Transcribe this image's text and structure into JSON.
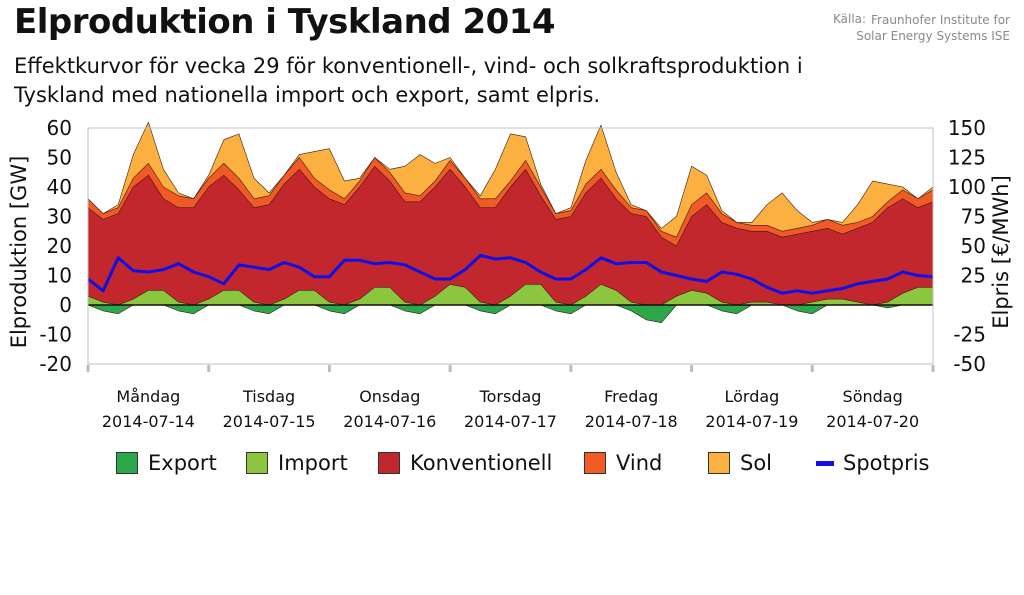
{
  "header": {
    "title": "Elproduktion i Tyskland 2014",
    "subtitle": "Effektkurvor för vecka 29 för konventionell-, vind- och solkraftsproduktion i Tyskland med nationella import och export, samt elpris.",
    "source_label": "Källa:",
    "source_name_line1": "Fraunhofer Institute for",
    "source_name_line2": "Solar Energy Systems ISE"
  },
  "colors": {
    "export": "#2aa84a",
    "import": "#8cc63f",
    "konventionell": "#c1272d",
    "vind": "#f15a24",
    "sol": "#fbb040",
    "spotpris": "#1010e6"
  },
  "chart_data": {
    "type": "area",
    "ylabel": "Elproduktion [GW]",
    "y2label": "Elpris [€/MWh]",
    "ylim": [
      -20,
      60
    ],
    "y2lim": [
      -50,
      150
    ],
    "yticks": [
      -20,
      -10,
      0,
      10,
      20,
      30,
      40,
      50,
      60
    ],
    "y2ticks": [
      -50,
      -25,
      25,
      50,
      75,
      100,
      125,
      150
    ],
    "grid": false,
    "legend_position": "bottom",
    "days": [
      {
        "name": "Måndag",
        "date": "2014-07-14"
      },
      {
        "name": "Tisdag",
        "date": "2014-07-15"
      },
      {
        "name": "Onsdag",
        "date": "2014-07-16"
      },
      {
        "name": "Torsdag",
        "date": "2014-07-17"
      },
      {
        "name": "Fredag",
        "date": "2014-07-18"
      },
      {
        "name": "Lördag",
        "date": "2014-07-19"
      },
      {
        "name": "Söndag",
        "date": "2014-07-20"
      }
    ],
    "x_hours": [
      0,
      3,
      6,
      9,
      12,
      15,
      18,
      21,
      24,
      27,
      30,
      33,
      36,
      39,
      42,
      45,
      48,
      51,
      54,
      57,
      60,
      63,
      66,
      69,
      72,
      75,
      78,
      81,
      84,
      87,
      90,
      93,
      96,
      99,
      102,
      105,
      108,
      111,
      114,
      117,
      120,
      123,
      126,
      129,
      132,
      135,
      138,
      141,
      144,
      147,
      150,
      153,
      156,
      159,
      162,
      165,
      168
    ],
    "series": [
      {
        "name": "Export",
        "unit": "GW",
        "values": [
          0,
          -2,
          -3,
          0,
          0,
          0,
          -2,
          -3,
          0,
          0,
          0,
          -2,
          -3,
          0,
          0,
          0,
          -2,
          -3,
          0,
          0,
          0,
          -2,
          -3,
          0,
          0,
          0,
          -2,
          -3,
          0,
          0,
          0,
          -2,
          -3,
          0,
          0,
          0,
          -2,
          -5,
          -6,
          0,
          0,
          0,
          -2,
          -3,
          0,
          0,
          0,
          -2,
          -3,
          0,
          0,
          0,
          0,
          -1,
          0,
          0,
          0
        ]
      },
      {
        "name": "Import",
        "unit": "GW",
        "values": [
          3,
          1,
          0,
          2,
          5,
          5,
          1,
          0,
          2,
          5,
          5,
          1,
          0,
          2,
          5,
          5,
          1,
          0,
          2,
          6,
          6,
          1,
          0,
          3,
          7,
          6,
          1,
          0,
          3,
          7,
          7,
          1,
          0,
          3,
          7,
          5,
          1,
          0,
          0,
          3,
          5,
          4,
          1,
          0,
          1,
          1,
          0,
          0,
          1,
          2,
          2,
          1,
          0,
          1,
          4,
          6,
          6
        ]
      },
      {
        "name": "Konventionell",
        "unit": "GW",
        "values": [
          33,
          29,
          31,
          40,
          44,
          36,
          33,
          33,
          40,
          44,
          39,
          33,
          34,
          41,
          46,
          40,
          36,
          34,
          40,
          47,
          42,
          35,
          35,
          40,
          46,
          40,
          33,
          33,
          40,
          46,
          37,
          29,
          30,
          38,
          43,
          36,
          31,
          30,
          23,
          20,
          30,
          34,
          28,
          26,
          25,
          25,
          23,
          24,
          25,
          26,
          24,
          26,
          28,
          33,
          36,
          33,
          35
        ]
      },
      {
        "name": "Vind",
        "unit": "GW",
        "values": [
          3,
          2,
          2,
          3,
          4,
          4,
          4,
          3,
          3,
          4,
          4,
          3,
          3,
          3,
          4,
          3,
          3,
          2,
          2,
          3,
          3,
          3,
          2,
          2,
          3,
          3,
          3,
          3,
          2,
          3,
          3,
          2,
          2,
          3,
          3,
          3,
          2,
          2,
          2,
          3,
          4,
          4,
          3,
          2,
          2,
          2,
          2,
          2,
          2,
          3,
          3,
          2,
          2,
          2,
          3,
          3,
          4
        ]
      },
      {
        "name": "Sol",
        "unit": "GW",
        "values": [
          0,
          0,
          1,
          8,
          14,
          6,
          1,
          0,
          1,
          8,
          15,
          7,
          1,
          0,
          1,
          9,
          14,
          6,
          1,
          0,
          1,
          9,
          14,
          6,
          1,
          0,
          1,
          10,
          16,
          8,
          1,
          0,
          1,
          8,
          15,
          6,
          1,
          0,
          1,
          7,
          13,
          6,
          1,
          0,
          1,
          7,
          13,
          6,
          1,
          0,
          1,
          6,
          12,
          6,
          1,
          0,
          1
        ]
      },
      {
        "name": "Spotpris",
        "unit": "€/MWh",
        "values": [
          22,
          12,
          40,
          29,
          28,
          30,
          35,
          28,
          24,
          18,
          34,
          32,
          30,
          36,
          32,
          24,
          24,
          38,
          38,
          35,
          36,
          34,
          28,
          22,
          22,
          30,
          42,
          39,
          40,
          36,
          28,
          22,
          22,
          30,
          40,
          35,
          36,
          36,
          28,
          25,
          22,
          20,
          28,
          26,
          22,
          15,
          10,
          12,
          10,
          12,
          14,
          18,
          20,
          22,
          28,
          25,
          24
        ]
      }
    ]
  },
  "legend": {
    "items": [
      "Export",
      "Import",
      "Konventionell",
      "Vind",
      "Sol",
      "Spotpris"
    ]
  }
}
